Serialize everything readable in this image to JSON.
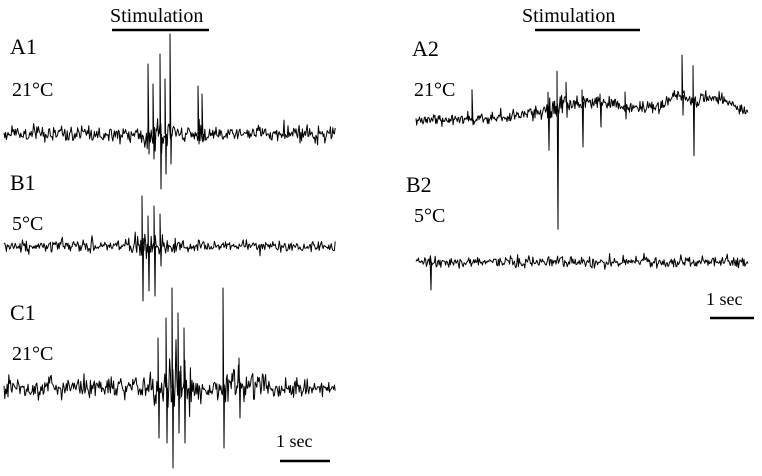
{
  "left_panel": {
    "stimulation_label": "Stimulation",
    "scale_label": "1 sec",
    "traces": [
      {
        "panel_label": "A1",
        "temperature": "21°C"
      },
      {
        "panel_label": "B1",
        "temperature": "5°C"
      },
      {
        "panel_label": "C1",
        "temperature": "21°C"
      }
    ]
  },
  "right_panel": {
    "stimulation_label": "Stimulation",
    "scale_label": "1 sec",
    "traces": [
      {
        "panel_label": "A2",
        "temperature": "21°C"
      },
      {
        "panel_label": "B2",
        "temperature": "5°C"
      }
    ]
  },
  "colors": {
    "trace": "#000000",
    "background": "#ffffff"
  }
}
